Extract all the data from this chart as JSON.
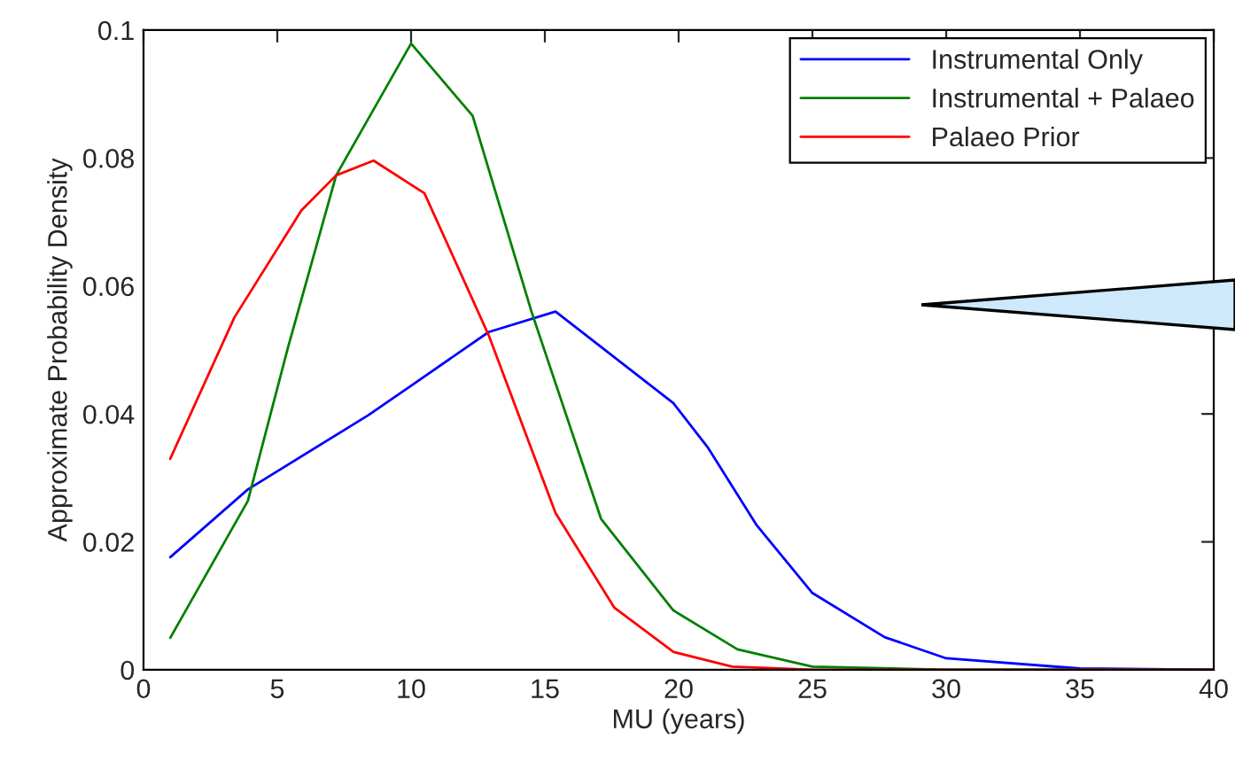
{
  "chart_data": {
    "type": "line",
    "xlabel": "MU (years)",
    "ylabel": "Approximate Probability Density",
    "xlim": [
      0,
      40
    ],
    "ylim": [
      0,
      0.1
    ],
    "xticks": [
      0,
      5,
      10,
      15,
      20,
      25,
      30,
      35,
      40
    ],
    "yticks": [
      0,
      0.02,
      0.04,
      0.06,
      0.08,
      0.1
    ],
    "grid": false,
    "legend": "top right",
    "marker": "none",
    "line_style": "solid",
    "series": [
      {
        "name": "Instrumental Only",
        "color": "#0000ff",
        "x": [
          1,
          3.9,
          8.4,
          10,
          12.9,
          15.4,
          19.8,
          21.1,
          22.9,
          25,
          27.7,
          30,
          35,
          40
        ],
        "values": [
          0.0176,
          0.0282,
          0.0398,
          0.0444,
          0.0528,
          0.056,
          0.0417,
          0.0347,
          0.0227,
          0.012,
          0.0051,
          0.0018,
          0.0002,
          0
        ]
      },
      {
        "name": "Instrumental + Palaeo",
        "color": "#008000",
        "x": [
          1,
          3.9,
          5.4,
          7.2,
          10,
          12.3,
          14.5,
          17.1,
          19.8,
          22.2,
          25,
          30,
          40
        ],
        "values": [
          0.005,
          0.0264,
          0.0504,
          0.0773,
          0.0979,
          0.0866,
          0.056,
          0.0236,
          0.0093,
          0.0032,
          0.0005,
          0,
          0
        ]
      },
      {
        "name": "Palaeo Prior",
        "color": "#ff0000",
        "x": [
          1,
          3.4,
          5.9,
          7.2,
          8.6,
          10.5,
          12.9,
          15.4,
          17.6,
          19.8,
          22,
          25,
          40
        ],
        "values": [
          0.033,
          0.0551,
          0.0718,
          0.0773,
          0.0796,
          0.0745,
          0.0523,
          0.0245,
          0.0097,
          0.0028,
          0.0005,
          0,
          0
        ]
      }
    ]
  }
}
